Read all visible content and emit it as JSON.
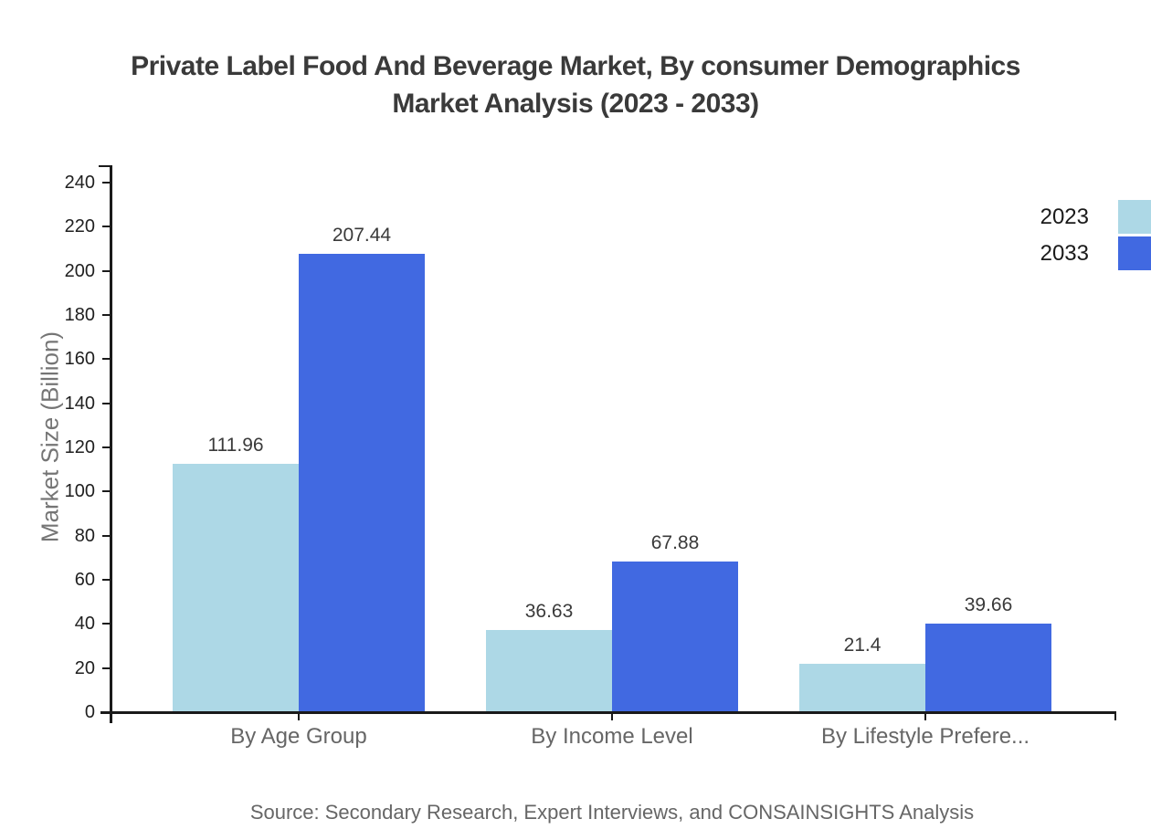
{
  "title": {
    "line1": "Private Label Food And Beverage Market, By consumer Demographics",
    "line2": "Market Analysis (2023 - 2033)"
  },
  "chart_data": {
    "type": "bar",
    "categories": [
      "By Age Group",
      "By Income Level",
      "By Lifestyle Prefere..."
    ],
    "series": [
      {
        "name": "2023",
        "color": "#ADD8E6",
        "values": [
          111.96,
          36.63,
          21.4
        ]
      },
      {
        "name": "2033",
        "color": "#4169E1",
        "values": [
          207.44,
          67.88,
          39.66
        ]
      }
    ],
    "title": "Private Label Food And Beverage Market, By consumer Demographics Market Analysis (2023 - 2033)",
    "xlabel": "",
    "ylabel": "Market Size (Billion)",
    "ylim": [
      0,
      248
    ],
    "yticks": [
      0,
      20,
      40,
      60,
      80,
      100,
      120,
      140,
      160,
      180,
      200,
      220,
      240
    ],
    "grid": false,
    "legend_position": "top-right",
    "value_labels_shown": true
  },
  "colors": {
    "series_2023": "#ADD8E6",
    "series_2033": "#4169E1",
    "axis": "#1a1a1a",
    "title_text": "#3a3a3a",
    "muted_text": "#666666"
  },
  "source": "Source: Secondary Research, Expert Interviews, and CONSAINSIGHTS Analysis"
}
